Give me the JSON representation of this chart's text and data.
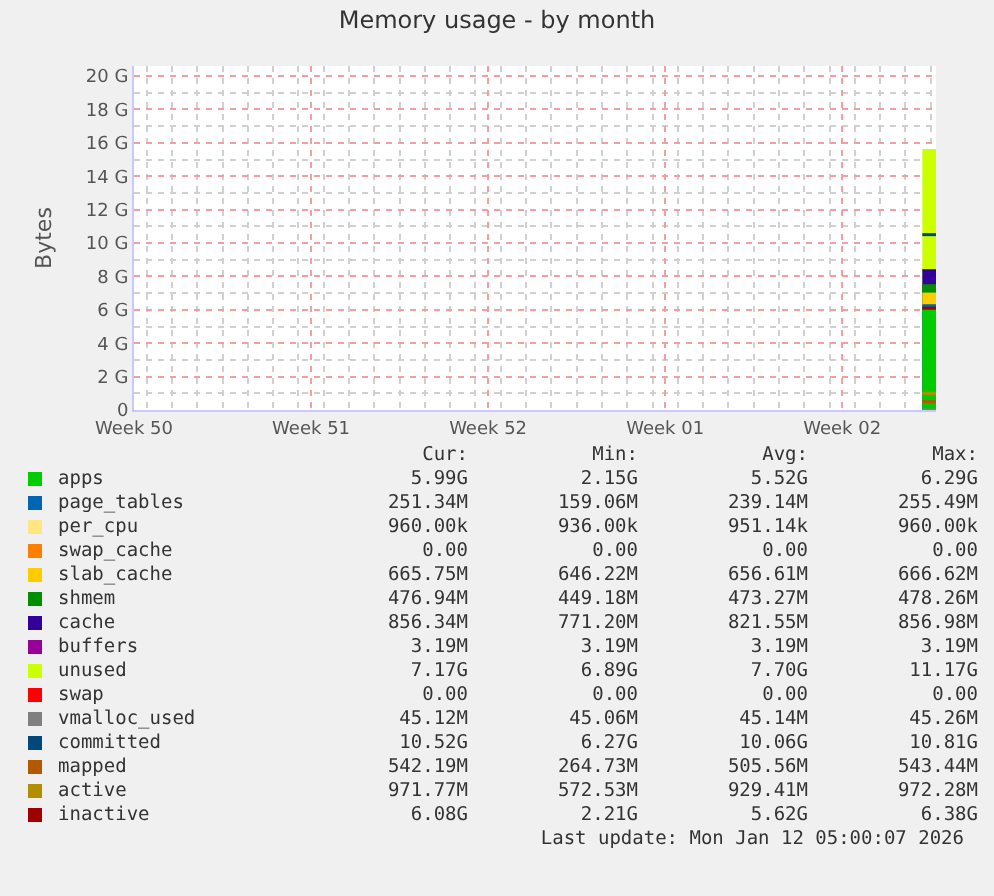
{
  "chart_data": {
    "type": "area",
    "title": "Memory usage - by month",
    "ylabel": "Bytes",
    "stacked": true,
    "grid": true,
    "legend": "bottom",
    "x": [
      "2026-01-11T16:00",
      "2026-01-12T05:00"
    ],
    "xlim": [
      "2025-12-11T12:00",
      "2026-01-12T05:00"
    ],
    "xticks": [
      {
        "value": "2025-12-11T12:00",
        "label": "Week 50"
      },
      {
        "value": "2025-12-18T12:00",
        "label": "Week 51"
      },
      {
        "value": "2025-12-25T12:00",
        "label": "Week 52"
      },
      {
        "value": "2026-01-01T12:00",
        "label": "Week 01"
      },
      {
        "value": "2026-01-08T12:00",
        "label": "Week 02"
      }
    ],
    "ylim": [
      0,
      20.6
    ],
    "yticks": [
      0,
      {
        "value": 2,
        "label": "2 G"
      },
      {
        "value": 4,
        "label": "4 G"
      },
      {
        "value": 6,
        "label": "6 G"
      },
      {
        "value": 8,
        "label": "8 G"
      },
      {
        "value": 10,
        "label": "10 G"
      },
      {
        "value": 12,
        "label": "12 G"
      },
      {
        "value": 14,
        "label": "14 G"
      },
      {
        "value": 16,
        "label": "16 G"
      },
      {
        "value": 18,
        "label": "18 G"
      },
      {
        "value": 20,
        "label": "20 G"
      }
    ],
    "series": [
      {
        "name": "apps",
        "color": "#00cc00",
        "values": [
          6,
          6
        ]
      },
      {
        "name": "page_tables",
        "color": "#0066b3",
        "values": [
          0.3,
          0.3
        ]
      },
      {
        "name": "per_cpu",
        "color": "#ffe680",
        "values": [
          null,
          null
        ]
      },
      {
        "name": "swap_cache",
        "color": "#ff8000",
        "values": [
          null,
          null
        ]
      },
      {
        "name": "slab_cache",
        "color": "#ffcc00",
        "values": [
          0.7,
          0.7
        ]
      },
      {
        "name": "shmem",
        "color": "#008f00",
        "values": [
          0.5,
          0.5
        ]
      },
      {
        "name": "cache",
        "color": "#330099",
        "values": [
          0.9,
          0.9
        ]
      },
      {
        "name": "buffers",
        "color": "#990099",
        "values": [
          null,
          null
        ]
      },
      {
        "name": "unused",
        "color": "#ccff00",
        "values": [
          7.2,
          7.2
        ]
      },
      {
        "name": "swap",
        "color": "#ff0000",
        "values": [
          null,
          null
        ]
      },
      {
        "name": "vmalloc_used",
        "color": "#808080",
        "type": "line",
        "values": [
          0,
          0
        ]
      },
      {
        "name": "committed",
        "color": "#00487d",
        "type": "line",
        "values": [
          10.5,
          10.5
        ]
      },
      {
        "name": "mapped",
        "color": "#b35a00",
        "type": "line",
        "values": [
          0.5,
          0.5
        ]
      },
      {
        "name": "active",
        "color": "#b38f00",
        "type": "line",
        "values": [
          1,
          1
        ]
      },
      {
        "name": "inactive",
        "color": "#a00000",
        "type": "line",
        "values": [
          6.1,
          6.1
        ]
      }
    ],
    "annotations": [
      "Cur:",
      "Min:",
      "Avg:",
      "Max:",
      "5.99G",
      "2.15G",
      "5.52G",
      "6.29G",
      "251.34M",
      "159.06M",
      "239.14M",
      "255.49M",
      "960.00k",
      "936.00k",
      "951.14k",
      "960.00k",
      "0.00",
      "0.00",
      "0.00",
      "0.00",
      "665.75M",
      "646.22M",
      "656.61M",
      "666.62M",
      "476.94M",
      "449.18M",
      "473.27M",
      "478.26M",
      "856.34M",
      "771.20M",
      "821.55M",
      "856.98M",
      "3.19M",
      "3.19M",
      "3.19M",
      "3.19M",
      "7.17G",
      "6.89G",
      "7.70G",
      "11.17G",
      "0.00",
      "0.00",
      "0.00",
      "0.00",
      "45.12M",
      "45.06M",
      "45.14M",
      "45.26M",
      "10.52G",
      "6.27G",
      "10.06G",
      "10.81G",
      "542.19M",
      "264.73M",
      "505.56M",
      "543.44M",
      "971.77M",
      "572.53M",
      "929.41M",
      "972.28M",
      "6.08G",
      "2.21G",
      "5.62G",
      "6.38G",
      "Last update: Mon Jan 12 05:00:07 2026"
    ]
  }
}
